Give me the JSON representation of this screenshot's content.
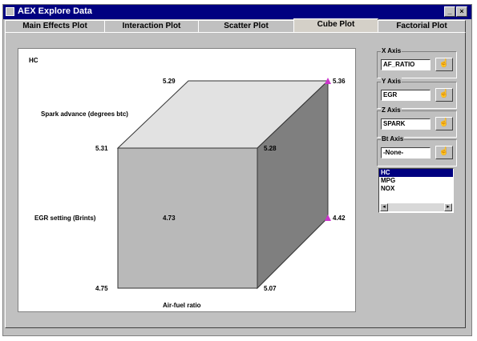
{
  "window": {
    "title": "AEX Explore Data"
  },
  "tabs": [
    {
      "label": "Main Effects Plot"
    },
    {
      "label": "Interaction Plot"
    },
    {
      "label": "Scatter Plot"
    },
    {
      "label": "Cube Plot"
    },
    {
      "label": "Factorial Plot"
    }
  ],
  "active_tab": "Cube Plot",
  "plot": {
    "response_label": "HC",
    "factor_labels": {
      "spark": "Spark advance (degrees btc)",
      "egr": "EGR setting (Brints)",
      "afr": "Air-fuel ratio"
    },
    "corner_values": {
      "front_top_left": "5.31",
      "front_top_right": "5.28",
      "front_bottom_left": "4.75",
      "front_bottom_right": "5.07",
      "back_top_left": "5.29",
      "back_top_right": "5.36",
      "back_bottom_left": "4.73",
      "back_bottom_right": "4.42"
    }
  },
  "axes": [
    {
      "label": "X Axis",
      "value": "AF_RATIO"
    },
    {
      "label": "Y Axis",
      "value": "EGR"
    },
    {
      "label": "Z Axis",
      "value": "SPARK"
    },
    {
      "label": "Bt Axis",
      "value": "-None-"
    }
  ],
  "responses": {
    "items": [
      "HC",
      "MPG",
      "NOX"
    ],
    "selected": "HC"
  },
  "colors": {
    "title_bar": "#000080",
    "highlight": "#cc33cc"
  }
}
